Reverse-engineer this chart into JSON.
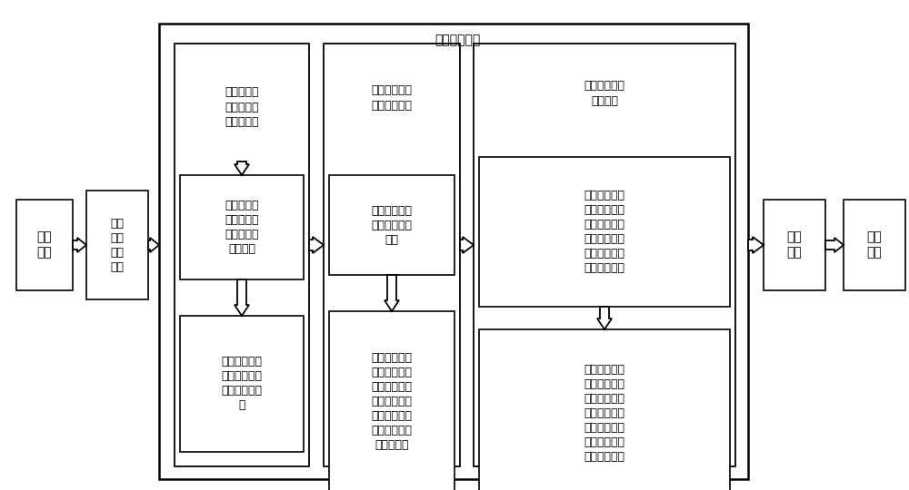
{
  "title": "计算预测步骤",
  "bg": "#ffffff",
  "lc": "#000000",
  "collect_text": "采集\n步骤",
  "work_text": "工作\n模式\n设置\n步骤",
  "query_text": "查询\n步骤",
  "output_text": "输出\n步骤",
  "c1t_text": "计算待测日\n多个时刻的\n温度和光强",
  "c1m_text": "计算待测日\n多个时刻的\n温度和光强\n权重参数",
  "c1b_text": "根据公式计算\n待测日多个时\n刻的温度光强\n值",
  "c2t_text": "计算待测日多\n个时刻的功率",
  "c2m_text": "提供功率与温\n度、光强的映\n射表",
  "c2b_text": "根据待测日多\n个时刻的温度\n和光强从功率\n与温度光强的\n映射表获取待\n测日多个时刻\n对应的功率",
  "c3_header_text": "计算待测日的\n总发电量",
  "c3m_text": "将两邻近时间\n的功率进行平\n均，再与该邻\n近时刻的时间\n间隔相乘获取\n对应的发电量",
  "c3b_text": "将待测日所有\n相邻两时刻的\n功率采取相同\n处理，并累计\n所有时段的发\n电量，获取待\n测日总发电量"
}
